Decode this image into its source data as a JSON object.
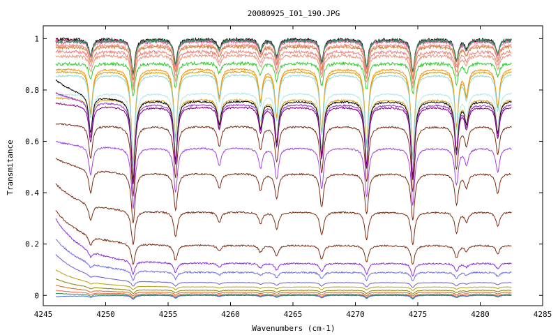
{
  "chart_data": {
    "type": "line",
    "title": "20080925_I01_190.JPG",
    "xlabel": "Wavenumbers (cm-1)",
    "ylabel": "Transmitance",
    "xlim": [
      4245,
      4285
    ],
    "ylim": [
      -0.04,
      1.05
    ],
    "x_ticks": [
      "4245",
      "4250",
      "4255",
      "4260",
      "4265",
      "4270",
      "4275",
      "4280",
      "4285"
    ],
    "y_ticks": [
      "0",
      "0.2",
      "0.4",
      "0.6",
      "0.8",
      "1"
    ],
    "grid": false,
    "legend": "none",
    "x_start": 4246.0,
    "x_end": 4282.5,
    "absorption_lines": [
      {
        "x": 4248.8,
        "depth": 0.35
      },
      {
        "x": 4252.2,
        "depth": 0.75
      },
      {
        "x": 4255.6,
        "depth": 0.55
      },
      {
        "x": 4259.1,
        "depth": 0.22
      },
      {
        "x": 4262.4,
        "depth": 0.25
      },
      {
        "x": 4263.7,
        "depth": 0.38
      },
      {
        "x": 4267.3,
        "depth": 0.5
      },
      {
        "x": 4270.9,
        "depth": 0.6
      },
      {
        "x": 4274.6,
        "depth": 0.7
      },
      {
        "x": 4278.1,
        "depth": 0.45
      },
      {
        "x": 4278.9,
        "depth": 0.2
      },
      {
        "x": 4281.4,
        "depth": 0.3
      }
    ],
    "series": [
      {
        "color": "#ff1493",
        "level": 0.995,
        "start": 0.995
      },
      {
        "color": "#ff69b4",
        "level": 0.99,
        "start": 0.99
      },
      {
        "color": "#000000",
        "level": 0.998,
        "start": 0.998
      },
      {
        "color": "#808080",
        "level": 0.993,
        "start": 0.985
      },
      {
        "color": "#2e8b57",
        "level": 0.996,
        "start": 0.99
      },
      {
        "color": "#ff8c8c",
        "level": 0.975,
        "start": 0.975
      },
      {
        "color": "#f08080",
        "level": 0.95,
        "start": 0.95
      },
      {
        "color": "#e9967a",
        "level": 0.935,
        "start": 0.93
      },
      {
        "color": "#cd853f",
        "level": 0.97,
        "start": 0.965
      },
      {
        "color": "#32cd32",
        "level": 0.905,
        "start": 0.9
      },
      {
        "color": "#ff8c00",
        "level": 0.885,
        "start": 0.88
      },
      {
        "color": "#dda000",
        "level": 0.875,
        "start": 0.87
      },
      {
        "color": "#8fd9d9",
        "level": 0.862,
        "start": 0.855
      },
      {
        "color": "#b0e8e8",
        "level": 0.79,
        "start": 0.78
      },
      {
        "color": "#d4a017",
        "level": 0.765,
        "start": 0.77
      },
      {
        "color": "#000000",
        "level": 0.758,
        "start": 0.84
      },
      {
        "color": "#9932cc",
        "level": 0.745,
        "start": 0.79
      },
      {
        "color": "#800080",
        "level": 0.735,
        "start": 0.75
      },
      {
        "color": "#7b2a10",
        "level": 0.66,
        "start": 0.67
      },
      {
        "color": "#a040e0",
        "level": 0.575,
        "start": 0.6
      },
      {
        "color": "#7b2a10",
        "level": 0.475,
        "start": 0.535
      },
      {
        "color": "#7b2a10",
        "level": 0.325,
        "start": 0.435
      },
      {
        "color": "#7b2a10",
        "level": 0.195,
        "start": 0.33
      },
      {
        "color": "#8a2be2",
        "level": 0.125,
        "start": 0.3
      },
      {
        "color": "#7070e0",
        "level": 0.09,
        "start": 0.22
      },
      {
        "color": "#6a5acd",
        "level": 0.05,
        "start": 0.16
      },
      {
        "color": "#b8a000",
        "level": 0.033,
        "start": 0.1
      },
      {
        "color": "#808000",
        "level": 0.02,
        "start": 0.065
      },
      {
        "color": "#d2691e",
        "level": 0.012,
        "start": 0.04
      },
      {
        "color": "#ff6347",
        "level": 0.006,
        "start": 0.02
      },
      {
        "color": "#2e8b57",
        "level": 0.002,
        "start": 0.008
      },
      {
        "color": "#4169e1",
        "level": 0.0,
        "start": -0.005
      }
    ]
  }
}
